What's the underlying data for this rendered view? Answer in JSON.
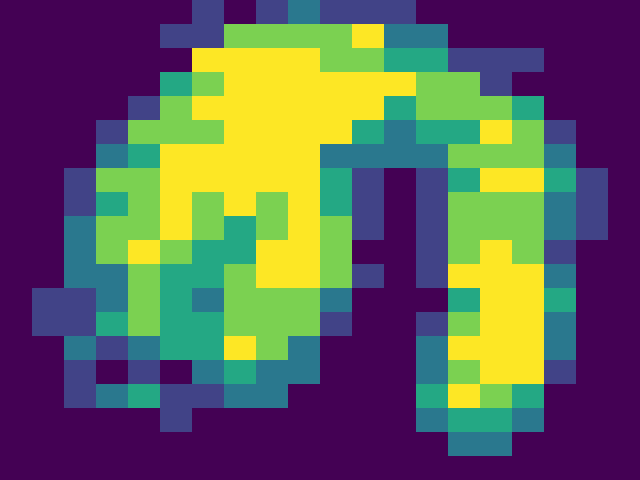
{
  "chart_data": {
    "type": "heatmap",
    "color": "Viridis",
    "zlim": [
      0,
      5
    ],
    "xlim": [
      -0.5,
      19.5
    ],
    "ylim": [
      19.5,
      -0.5
    ],
    "tick_labels": false,
    "grid": false,
    "cells": [
      [
        0,
        0,
        0,
        0,
        0,
        0,
        1,
        0,
        1,
        2,
        1,
        1,
        1,
        0,
        0,
        0,
        0,
        0,
        0,
        0
      ],
      [
        0,
        0,
        0,
        0,
        0,
        1,
        1,
        4,
        4,
        4,
        4,
        5,
        2,
        2,
        0,
        0,
        0,
        0,
        0,
        0
      ],
      [
        0,
        0,
        0,
        0,
        0,
        0,
        5,
        5,
        5,
        5,
        4,
        4,
        3,
        3,
        1,
        1,
        1,
        0,
        0,
        0
      ],
      [
        0,
        0,
        0,
        0,
        0,
        3,
        4,
        5,
        5,
        5,
        5,
        5,
        5,
        4,
        4,
        1,
        0,
        0,
        0,
        0
      ],
      [
        0,
        0,
        0,
        0,
        1,
        4,
        5,
        5,
        5,
        5,
        5,
        5,
        3,
        4,
        4,
        4,
        3,
        0,
        0,
        0
      ],
      [
        0,
        0,
        0,
        1,
        4,
        4,
        4,
        5,
        5,
        5,
        5,
        3,
        2,
        3,
        3,
        5,
        4,
        1,
        0,
        0
      ],
      [
        0,
        0,
        0,
        2,
        3,
        5,
        5,
        5,
        5,
        5,
        2,
        2,
        2,
        2,
        4,
        4,
        4,
        2,
        0,
        0
      ],
      [
        0,
        0,
        1,
        4,
        4,
        5,
        5,
        5,
        5,
        5,
        3,
        1,
        0,
        1,
        3,
        5,
        5,
        3,
        1,
        0
      ],
      [
        0,
        0,
        1,
        3,
        4,
        5,
        4,
        5,
        4,
        5,
        3,
        1,
        0,
        1,
        4,
        4,
        4,
        2,
        1,
        0
      ],
      [
        0,
        0,
        2,
        4,
        4,
        5,
        4,
        3,
        4,
        5,
        4,
        1,
        0,
        1,
        4,
        4,
        4,
        2,
        1,
        0
      ],
      [
        0,
        0,
        2,
        4,
        5,
        4,
        3,
        3,
        5,
        5,
        4,
        0,
        0,
        1,
        4,
        5,
        4,
        1,
        0,
        0
      ],
      [
        0,
        0,
        2,
        2,
        4,
        3,
        3,
        4,
        5,
        5,
        4,
        1,
        0,
        1,
        5,
        5,
        5,
        2,
        0,
        0
      ],
      [
        0,
        1,
        1,
        2,
        4,
        3,
        2,
        4,
        4,
        4,
        2,
        0,
        0,
        0,
        3,
        5,
        5,
        3,
        0,
        0
      ],
      [
        0,
        1,
        1,
        3,
        4,
        3,
        3,
        4,
        4,
        4,
        1,
        0,
        0,
        1,
        4,
        5,
        5,
        2,
        0,
        0
      ],
      [
        0,
        0,
        2,
        1,
        2,
        3,
        3,
        5,
        4,
        2,
        0,
        0,
        0,
        2,
        5,
        5,
        5,
        2,
        0,
        0
      ],
      [
        0,
        0,
        1,
        0,
        1,
        0,
        2,
        3,
        2,
        2,
        0,
        0,
        0,
        2,
        4,
        5,
        5,
        1,
        0,
        0
      ],
      [
        0,
        0,
        1,
        2,
        3,
        1,
        1,
        2,
        2,
        0,
        0,
        0,
        0,
        3,
        5,
        4,
        3,
        0,
        0,
        0
      ],
      [
        0,
        0,
        0,
        0,
        0,
        1,
        0,
        0,
        0,
        0,
        0,
        0,
        0,
        2,
        3,
        3,
        2,
        0,
        0,
        0
      ],
      [
        0,
        0,
        0,
        0,
        0,
        0,
        0,
        0,
        0,
        0,
        0,
        0,
        0,
        0,
        2,
        2,
        0,
        0,
        0,
        0
      ],
      [
        0,
        0,
        0,
        0,
        0,
        0,
        0,
        0,
        0,
        0,
        0,
        0,
        0,
        0,
        0,
        0,
        0,
        0,
        0,
        0
      ]
    ]
  }
}
